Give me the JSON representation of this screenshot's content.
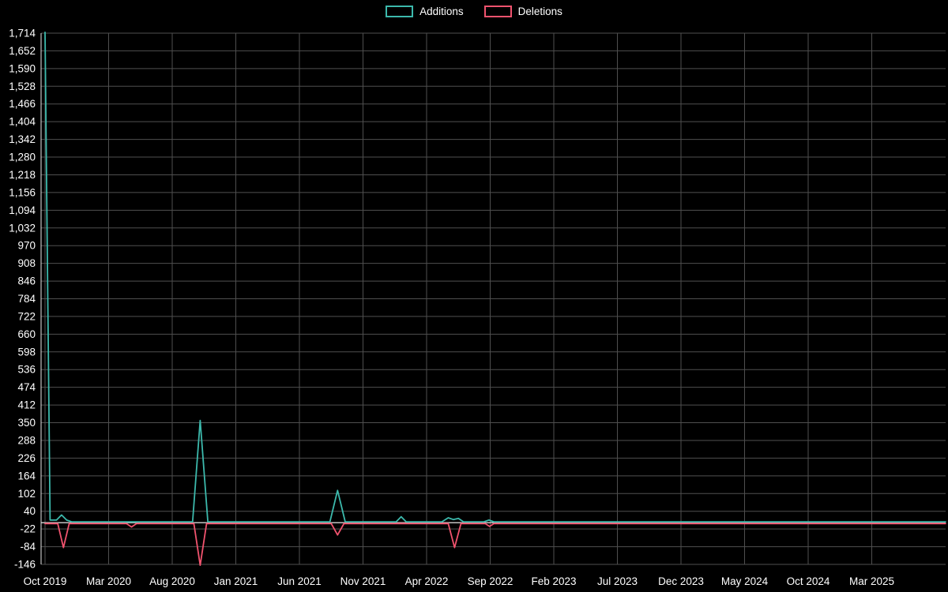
{
  "chart_data": {
    "type": "line",
    "title": "",
    "xlabel": "",
    "ylabel": "",
    "grid": true,
    "legend_position": "top-center",
    "ylim": [
      -146,
      1714
    ],
    "y_tick_step": 62,
    "x_unit": "months-since-first-tick",
    "colors": {
      "background": "#000000",
      "grid": "#4f4f4f",
      "axis": "#e8e8e8",
      "zero_line": "#d6d6d6",
      "text": "#ffffff"
    },
    "y_ticks": [
      {
        "v": -146,
        "label": "-146"
      },
      {
        "v": -84,
        "label": "-84"
      },
      {
        "v": -22,
        "label": "-22"
      },
      {
        "v": 40,
        "label": "40"
      },
      {
        "v": 102,
        "label": "102"
      },
      {
        "v": 164,
        "label": "164"
      },
      {
        "v": 226,
        "label": "226"
      },
      {
        "v": 288,
        "label": "288"
      },
      {
        "v": 350,
        "label": "350"
      },
      {
        "v": 412,
        "label": "412"
      },
      {
        "v": 474,
        "label": "474"
      },
      {
        "v": 536,
        "label": "536"
      },
      {
        "v": 598,
        "label": "598"
      },
      {
        "v": 660,
        "label": "660"
      },
      {
        "v": 722,
        "label": "722"
      },
      {
        "v": 784,
        "label": "784"
      },
      {
        "v": 846,
        "label": "846"
      },
      {
        "v": 908,
        "label": "908"
      },
      {
        "v": 970,
        "label": "970"
      },
      {
        "v": 1032,
        "label": "1,032"
      },
      {
        "v": 1094,
        "label": "1,094"
      },
      {
        "v": 1156,
        "label": "1,156"
      },
      {
        "v": 1218,
        "label": "1,218"
      },
      {
        "v": 1280,
        "label": "1,280"
      },
      {
        "v": 1342,
        "label": "1,342"
      },
      {
        "v": 1404,
        "label": "1,404"
      },
      {
        "v": 1466,
        "label": "1,466"
      },
      {
        "v": 1528,
        "label": "1,528"
      },
      {
        "v": 1590,
        "label": "1,590"
      },
      {
        "v": 1652,
        "label": "1,652"
      },
      {
        "v": 1714,
        "label": "1,714"
      }
    ],
    "x_ticks": [
      {
        "month": 0,
        "label": "Oct 2019"
      },
      {
        "month": 5,
        "label": "Mar 2020"
      },
      {
        "month": 10,
        "label": "Aug 2020"
      },
      {
        "month": 15,
        "label": "Jan 2021"
      },
      {
        "month": 20,
        "label": "Jun 2021"
      },
      {
        "month": 25,
        "label": "Nov 2021"
      },
      {
        "month": 30,
        "label": "Apr 2022"
      },
      {
        "month": 35,
        "label": "Sep 2022"
      },
      {
        "month": 40,
        "label": "Feb 2023"
      },
      {
        "month": 45,
        "label": "Jul 2023"
      },
      {
        "month": 50,
        "label": "Dec 2023"
      },
      {
        "month": 55,
        "label": "May 2024"
      },
      {
        "month": 60,
        "label": "Oct 2024"
      },
      {
        "month": 65,
        "label": "Mar 2025"
      }
    ],
    "series": [
      {
        "name": "Additions",
        "color": "#3cb9ac",
        "points": [
          [
            0,
            1714
          ],
          [
            0.4,
            6
          ],
          [
            0.9,
            6
          ],
          [
            1.3,
            24
          ],
          [
            1.7,
            6
          ],
          [
            2.1,
            0
          ],
          [
            11.6,
            0
          ],
          [
            12.2,
            355
          ],
          [
            12.8,
            0
          ],
          [
            22.4,
            0
          ],
          [
            23,
            110
          ],
          [
            23.6,
            0
          ],
          [
            27.6,
            0
          ],
          [
            28,
            18
          ],
          [
            28.4,
            0
          ],
          [
            31.2,
            0
          ],
          [
            31.7,
            14
          ],
          [
            32.1,
            8
          ],
          [
            32.5,
            12
          ],
          [
            32.9,
            0
          ],
          [
            34.5,
            0
          ],
          [
            34.9,
            6
          ],
          [
            35.3,
            0
          ],
          [
            70.8,
            0
          ]
        ]
      },
      {
        "name": "Deletions",
        "color": "#f1536e",
        "points": [
          [
            0,
            0
          ],
          [
            1.0,
            0
          ],
          [
            1.45,
            -84
          ],
          [
            1.9,
            0
          ],
          [
            6.4,
            0
          ],
          [
            6.8,
            -12
          ],
          [
            7.2,
            0
          ],
          [
            11.7,
            0
          ],
          [
            12.2,
            -146
          ],
          [
            12.7,
            0
          ],
          [
            22.5,
            0
          ],
          [
            23,
            -40
          ],
          [
            23.5,
            0
          ],
          [
            31.7,
            0
          ],
          [
            32.2,
            -84
          ],
          [
            32.7,
            0
          ],
          [
            34.6,
            0
          ],
          [
            34.95,
            -10
          ],
          [
            35.3,
            0
          ],
          [
            70.8,
            0
          ]
        ]
      }
    ]
  }
}
